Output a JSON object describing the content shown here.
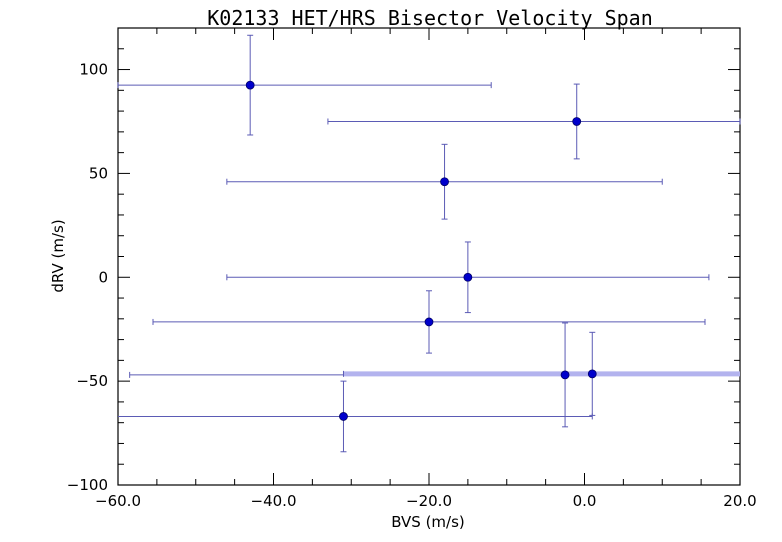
{
  "chart_data": {
    "type": "scatter",
    "title": "K02133 HET/HRS Bisector Velocity Span",
    "xlabel": "BVS (m/s)",
    "ylabel": "dRV (m/s)",
    "xlim": [
      -60,
      20
    ],
    "ylim": [
      -100,
      120
    ],
    "x_ticks": [
      -60,
      -40,
      -20,
      0,
      20
    ],
    "x_tick_labels": [
      "−60.0",
      "−40.0",
      "−20.0",
      "0.0",
      "20.0"
    ],
    "y_ticks": [
      -100,
      -50,
      0,
      50,
      100
    ],
    "y_tick_labels": [
      "−100",
      "−50",
      "0",
      "50",
      "100"
    ],
    "x_minor_step": 5,
    "y_minor_step": 10,
    "grid": false,
    "colors": {
      "point": "#0000cc",
      "errorbar": "#5b5bb5",
      "highlight_errorbar": "#b3b3ee"
    },
    "points": [
      {
        "x": -43,
        "y": 92.5,
        "xerr_low": 17,
        "xerr_high": 31,
        "yerr": 24
      },
      {
        "x": -1,
        "y": 75,
        "xerr_low": 32,
        "xerr_high": 21,
        "yerr": 18
      },
      {
        "x": -18,
        "y": 46,
        "xerr_low": 28,
        "xerr_high": 28,
        "yerr": 18
      },
      {
        "x": -15,
        "y": 0,
        "xerr_low": 31,
        "xerr_high": 31,
        "yerr": 17
      },
      {
        "x": -20,
        "y": -21.5,
        "xerr_low": 35.5,
        "xerr_high": 35.5,
        "yerr": 15
      },
      {
        "x": -2.5,
        "y": -47,
        "xerr_low": 56,
        "xerr_high": 56,
        "yerr": 25
      },
      {
        "x": 1,
        "y": -46.5,
        "xerr_low": 32,
        "xerr_high": 30,
        "yerr": 20,
        "highlight": true
      },
      {
        "x": -31,
        "y": -67,
        "xerr_low": 31,
        "xerr_high": 32,
        "yerr": 17
      }
    ]
  }
}
